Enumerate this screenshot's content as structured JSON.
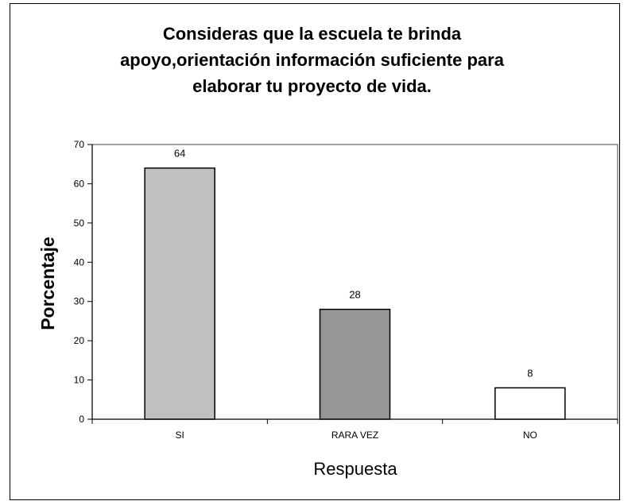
{
  "chart_data": {
    "type": "bar",
    "title": "Consideras que la escuela te brinda apoyo,orientación información suficiente para elaborar tu proyecto de vida.",
    "title_lines": [
      "Consideras que la escuela te brinda",
      "apoyo,orientación información suficiente para",
      "elaborar tu proyecto de vida."
    ],
    "xlabel": "Respuesta",
    "ylabel": "Porcentaje",
    "categories": [
      "SI",
      "RARA VEZ",
      "NO"
    ],
    "values": [
      64,
      28,
      8
    ],
    "data_labels": [
      "64",
      "28",
      "8"
    ],
    "bar_colors": [
      "#c0c0c0",
      "#969696",
      "#ffffff"
    ],
    "ylim": [
      0,
      70
    ],
    "yticks": [
      0,
      10,
      20,
      30,
      40,
      50,
      60,
      70
    ],
    "grid": false,
    "legend": "none",
    "plot_border_color": "#808080"
  }
}
